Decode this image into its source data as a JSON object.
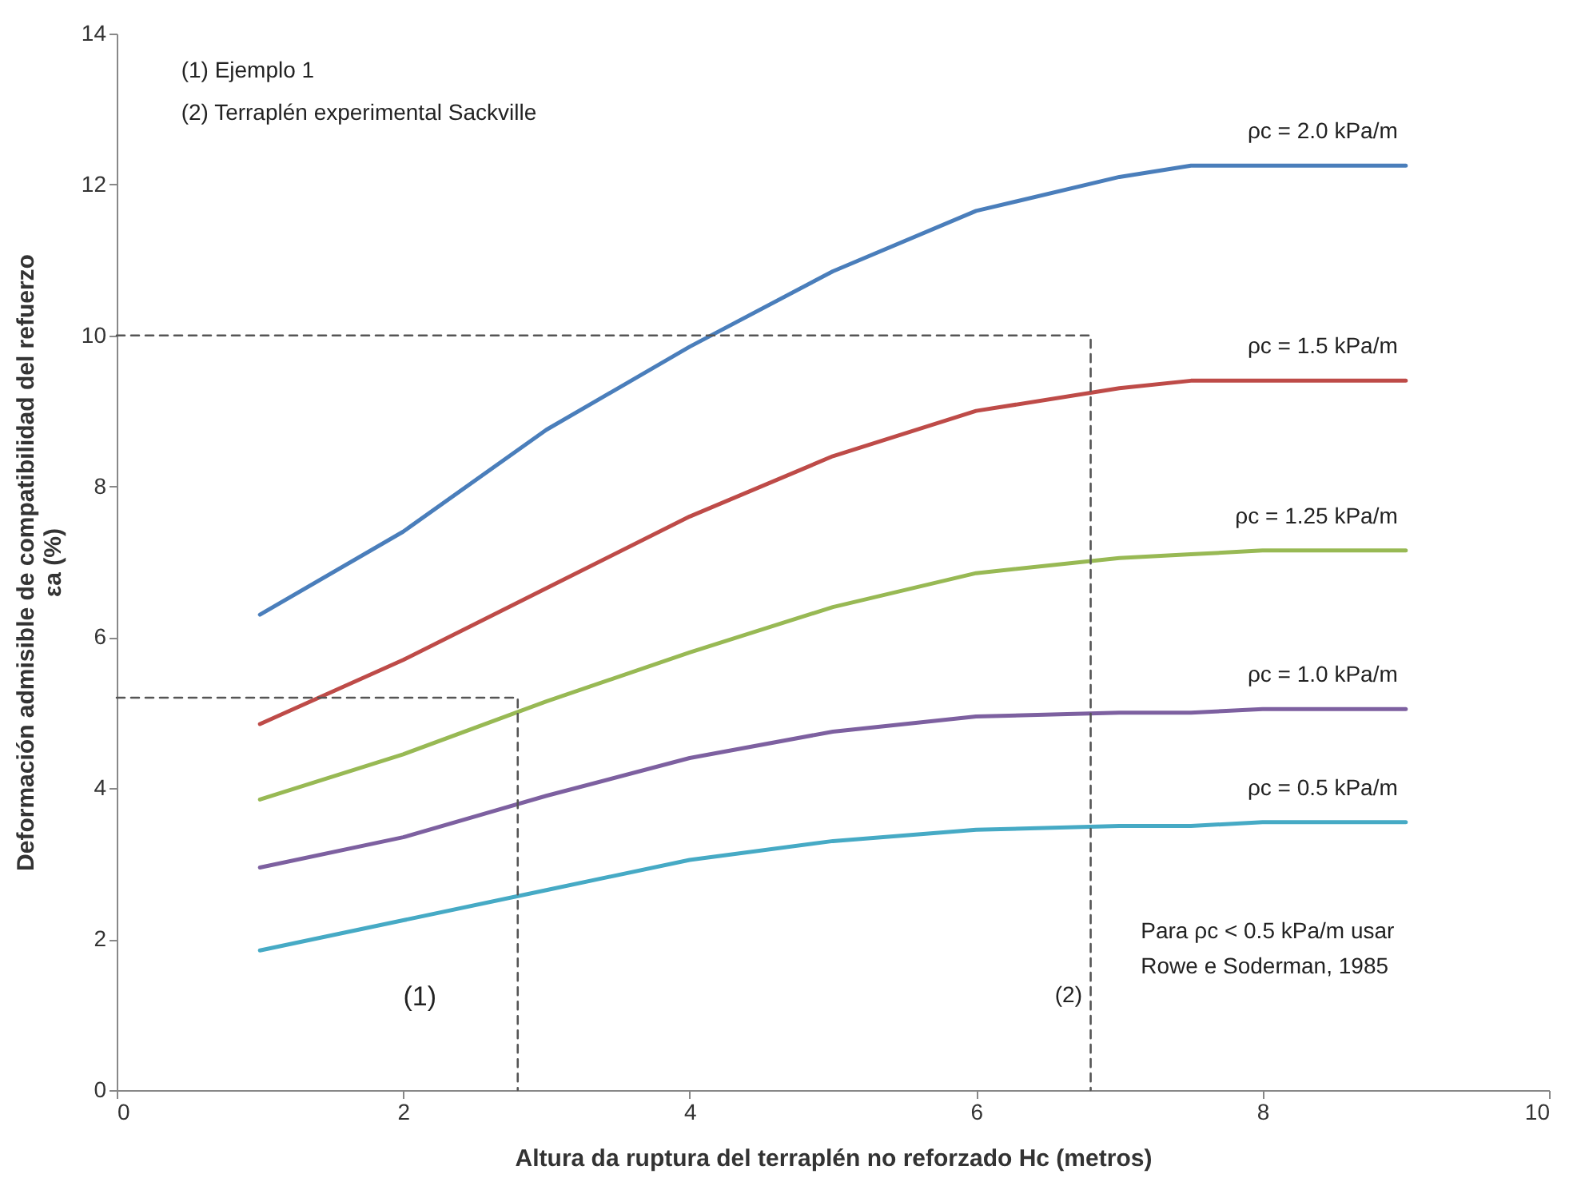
{
  "chart_data": {
    "type": "line",
    "xlabel": "Altura da ruptura del terraplén no reforzado Hc (metros)",
    "ylabel": "Deformación admisible de compatibilidad del refuerzo\nεa (%)",
    "xlim": [
      0,
      10
    ],
    "xticks": [
      0,
      2,
      4,
      6,
      8,
      10
    ],
    "ylim": [
      0,
      14
    ],
    "yticks": [
      0,
      2,
      4,
      6,
      8,
      10,
      12,
      14
    ],
    "grid": false,
    "marker": "none",
    "line_style": "solid",
    "x": [
      1,
      2,
      3,
      4,
      5,
      6,
      7,
      7.5,
      8,
      9
    ],
    "series": [
      {
        "name": "ρc = 2.0 kPa/m",
        "color": "#4a7ebb",
        "values": [
          6.3,
          7.4,
          8.75,
          9.85,
          10.85,
          11.65,
          12.1,
          12.25,
          12.25,
          12.25
        ]
      },
      {
        "name": "ρc = 1.5 kPa/m",
        "color": "#be4b48",
        "values": [
          4.85,
          5.7,
          6.65,
          7.6,
          8.4,
          9.0,
          9.3,
          9.4,
          9.4,
          9.4
        ]
      },
      {
        "name": "ρc = 1.25 kPa/m",
        "color": "#98b954",
        "values": [
          3.85,
          4.45,
          5.15,
          5.8,
          6.4,
          6.85,
          7.05,
          7.1,
          7.15,
          7.15
        ]
      },
      {
        "name": "ρc = 1.0 kPa/m",
        "color": "#7d60a0",
        "values": [
          2.95,
          3.35,
          3.9,
          4.4,
          4.75,
          4.95,
          5.0,
          5.0,
          5.05,
          5.05
        ]
      },
      {
        "name": "ρc = 0.5 kPa/m",
        "color": "#46aac5",
        "values": [
          1.85,
          2.25,
          2.65,
          3.05,
          3.3,
          3.45,
          3.5,
          3.5,
          3.55,
          3.55
        ]
      },
      {
        "type": "line",
        "line_style": "dashed",
        "color": "#555555",
        "x": [
          0,
          6.8,
          6.8
        ],
        "values": [
          10,
          10,
          0
        ]
      },
      {
        "type": "line",
        "line_style": "dashed",
        "color": "#555555",
        "x": [
          0,
          2.8,
          2.8
        ],
        "values": [
          5.2,
          5.2,
          0
        ]
      }
    ],
    "annotations": [
      "(1) Ejemplo 1",
      "(2) Terraplén experimental Sackville",
      "(1)",
      "(2)",
      "Para ρc < 0.5 kPa/m usar\nRowe e Soderman, 1985"
    ]
  }
}
